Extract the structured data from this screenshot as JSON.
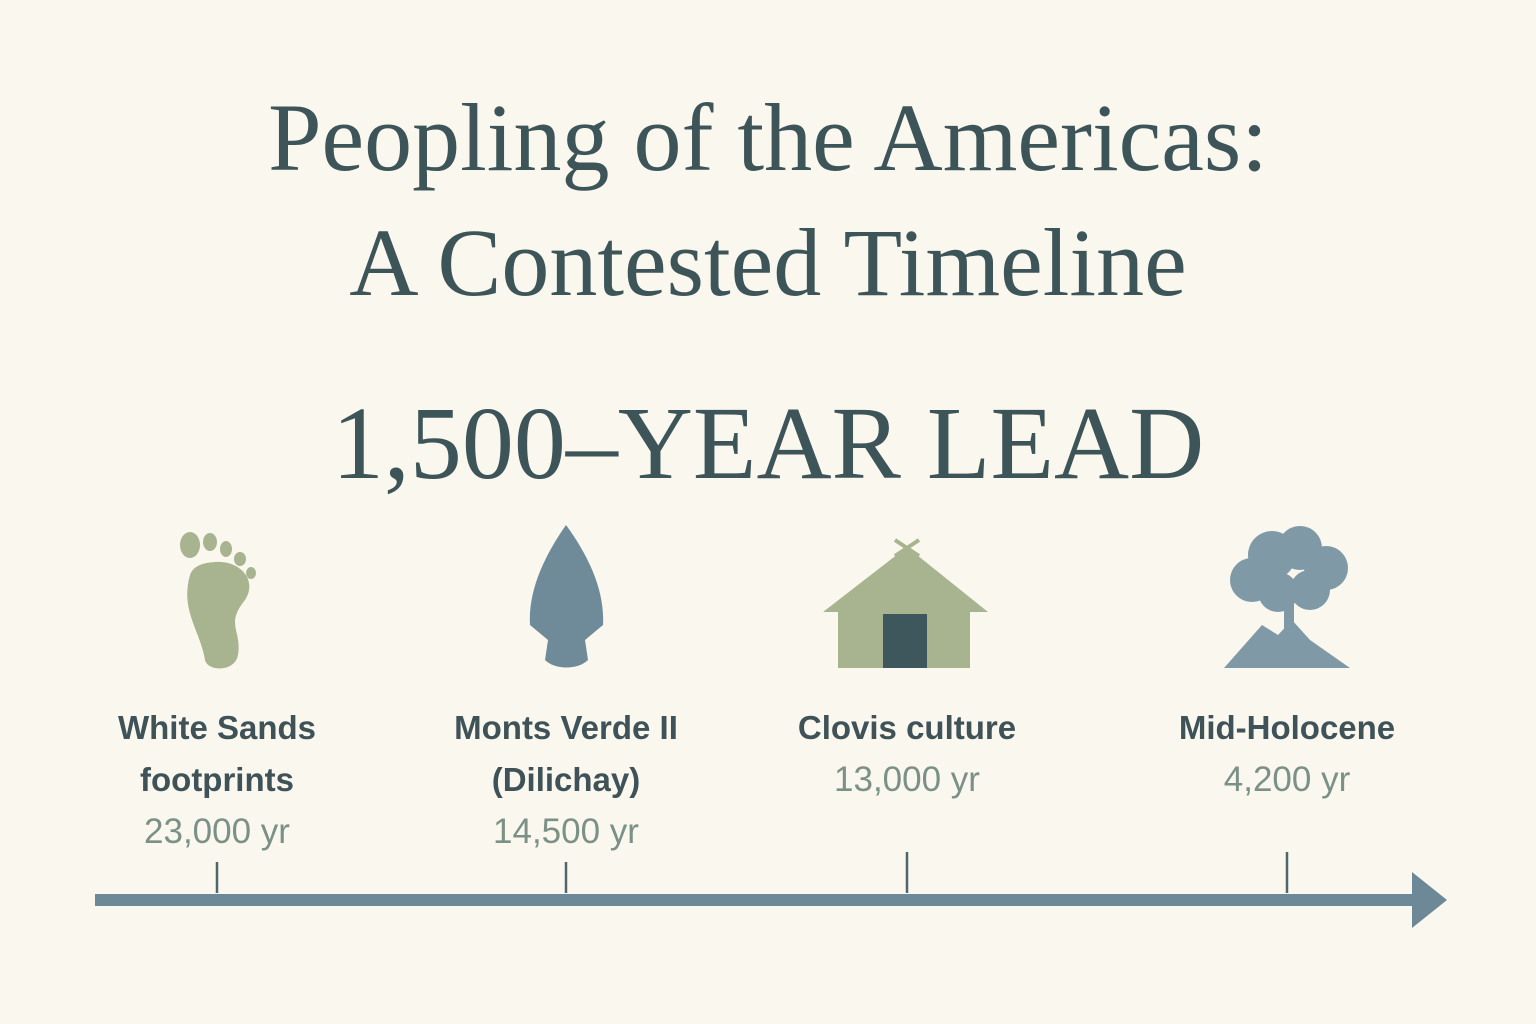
{
  "title": [
    "Peopling of the Americas:",
    "A Contested Timeline"
  ],
  "headline": "1,500–YEAR LEAD",
  "events": [
    {
      "label": "White Sands footprints",
      "age": "23,000 yr"
    },
    {
      "label": "Monts Verde II (Dilichay)",
      "age": "14,500 yr"
    },
    {
      "label": "Clovis culture",
      "age": "13,000 yr"
    },
    {
      "label": "Mid-Holocene",
      "age": "4,200 yr"
    }
  ]
}
